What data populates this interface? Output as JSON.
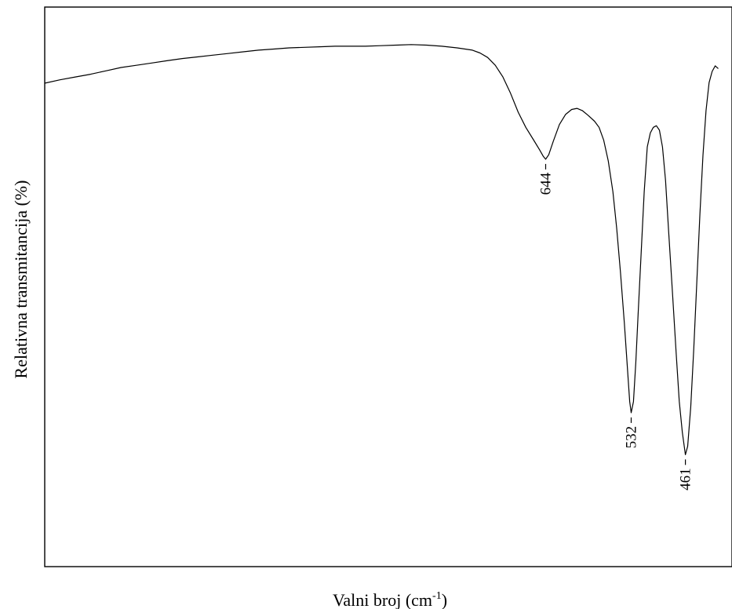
{
  "chart_data": {
    "type": "line",
    "title": "",
    "xlabel": "Valni broj (cm",
    "xlabel_sup": "-1",
    "xlabel_close": ")",
    "ylabel": "Relativna transmitancija (%)",
    "xlim": [
      1300,
      400
    ],
    "ylim": [
      0,
      100
    ],
    "grid": false,
    "legend": "none",
    "series": [
      {
        "color": "#000000",
        "points": [
          [
            1300,
            86.4
          ],
          [
            1280,
            87.0
          ],
          [
            1260,
            87.5
          ],
          [
            1240,
            88.0
          ],
          [
            1220,
            88.6
          ],
          [
            1200,
            89.2
          ],
          [
            1180,
            89.6
          ],
          [
            1160,
            90.0
          ],
          [
            1140,
            90.4
          ],
          [
            1120,
            90.8
          ],
          [
            1100,
            91.1
          ],
          [
            1080,
            91.4
          ],
          [
            1060,
            91.7
          ],
          [
            1040,
            92.0
          ],
          [
            1020,
            92.3
          ],
          [
            1000,
            92.5
          ],
          [
            980,
            92.7
          ],
          [
            960,
            92.8
          ],
          [
            940,
            92.9
          ],
          [
            920,
            93.0
          ],
          [
            900,
            93.0
          ],
          [
            880,
            93.0
          ],
          [
            860,
            93.1
          ],
          [
            840,
            93.2
          ],
          [
            820,
            93.3
          ],
          [
            800,
            93.2
          ],
          [
            780,
            93.0
          ],
          [
            760,
            92.7
          ],
          [
            740,
            92.3
          ],
          [
            730,
            91.8
          ],
          [
            720,
            91.0
          ],
          [
            710,
            89.6
          ],
          [
            700,
            87.5
          ],
          [
            690,
            84.6
          ],
          [
            680,
            81.2
          ],
          [
            670,
            78.5
          ],
          [
            660,
            76.3
          ],
          [
            652,
            74.5
          ],
          [
            647,
            73.3
          ],
          [
            644,
            72.8
          ],
          [
            640,
            73.6
          ],
          [
            634,
            76.0
          ],
          [
            626,
            79.0
          ],
          [
            618,
            80.8
          ],
          [
            610,
            81.7
          ],
          [
            603,
            81.9
          ],
          [
            596,
            81.5
          ],
          [
            588,
            80.6
          ],
          [
            580,
            79.6
          ],
          [
            574,
            78.5
          ],
          [
            568,
            76.2
          ],
          [
            562,
            72.5
          ],
          [
            556,
            67.0
          ],
          [
            551,
            60.5
          ],
          [
            546,
            52.5
          ],
          [
            541,
            43.5
          ],
          [
            537,
            35.5
          ],
          [
            534,
            29.5
          ],
          [
            532,
            27.5
          ],
          [
            529,
            29.5
          ],
          [
            526,
            36.5
          ],
          [
            523,
            45.0
          ],
          [
            519,
            56.0
          ],
          [
            515,
            67.0
          ],
          [
            511,
            75.0
          ],
          [
            507,
            77.5
          ],
          [
            503,
            78.5
          ],
          [
            499,
            78.8
          ],
          [
            495,
            78.0
          ],
          [
            491,
            75.0
          ],
          [
            487,
            69.0
          ],
          [
            483,
            60.0
          ],
          [
            478,
            49.0
          ],
          [
            473,
            38.0
          ],
          [
            469,
            29.5
          ],
          [
            465,
            24.0
          ],
          [
            461,
            20.0
          ],
          [
            458,
            21.5
          ],
          [
            454,
            28.5
          ],
          [
            450,
            39.0
          ],
          [
            446,
            51.0
          ],
          [
            442,
            63.0
          ],
          [
            438,
            73.5
          ],
          [
            434,
            81.5
          ],
          [
            430,
            86.5
          ],
          [
            426,
            88.5
          ],
          [
            422,
            89.5
          ],
          [
            418,
            89.0
          ]
        ]
      }
    ],
    "annotations": [
      {
        "x": 644,
        "y": 72.8,
        "label": "644"
      },
      {
        "x": 532,
        "y": 27.5,
        "label": "532"
      },
      {
        "x": 461,
        "y": 20.0,
        "label": "461"
      }
    ]
  }
}
